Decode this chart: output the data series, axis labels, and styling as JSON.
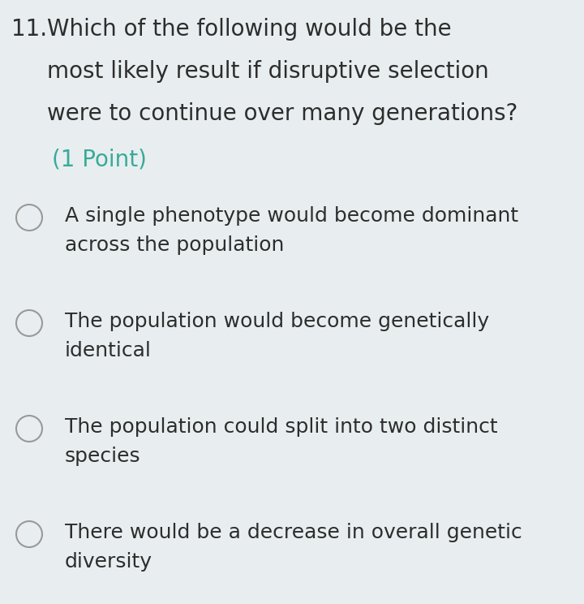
{
  "background_color": "#e8eef0",
  "question_number": "11.",
  "question_text_line1": "Which of the following would be the",
  "question_text_line2": "most likely result if disruptive selection",
  "question_text_line3": "were to continue over many generations?",
  "point_text": "(1 Point)",
  "question_color": "#2d2d2d",
  "point_color": "#3aaa99",
  "options": [
    {
      "line1": "A single phenotype would become dominant",
      "line2": "across the population"
    },
    {
      "line1": "The population would become genetically",
      "line2": "identical"
    },
    {
      "line1": "The population could split into two distinct",
      "line2": "species"
    },
    {
      "line1": "There would be a decrease in overall genetic",
      "line2": "diversity"
    }
  ],
  "option_text_color": "#2d2d2d",
  "circle_edge_color": "#999999",
  "circle_fill_color": "#e8eef0",
  "fig_width": 7.2,
  "fig_height": 7.44,
  "dpi": 100
}
